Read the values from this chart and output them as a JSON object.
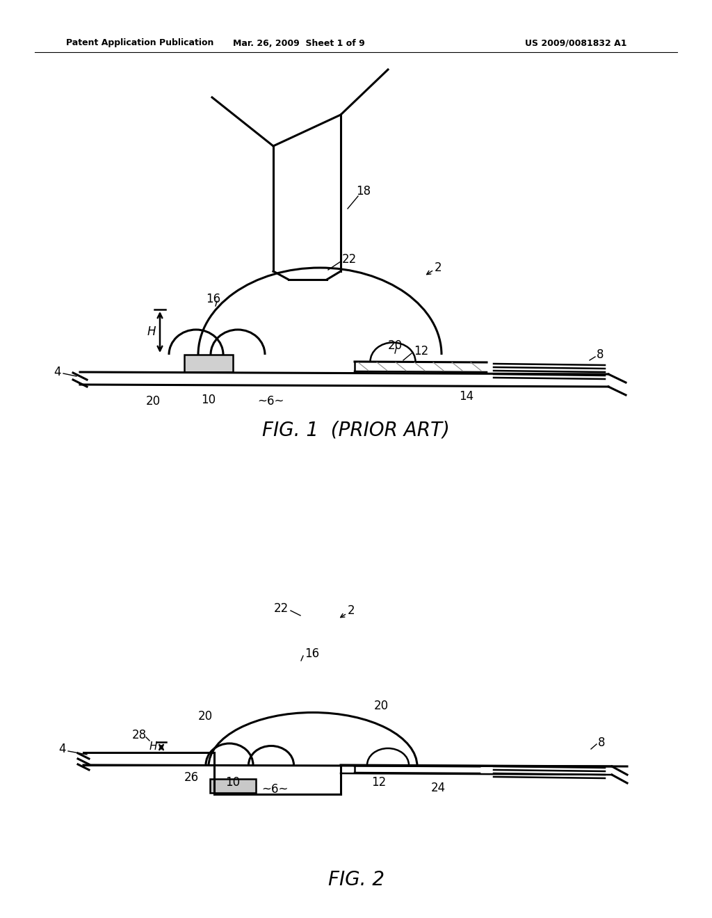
{
  "bg_color": "#ffffff",
  "header_left": "Patent Application Publication",
  "header_mid": "Mar. 26, 2009  Sheet 1 of 9",
  "header_right": "US 2009/0081832 A1",
  "fig1_caption": "FIG. 1  (PRIOR ART)",
  "fig2_caption": "FIG. 2",
  "line_color": "#000000"
}
